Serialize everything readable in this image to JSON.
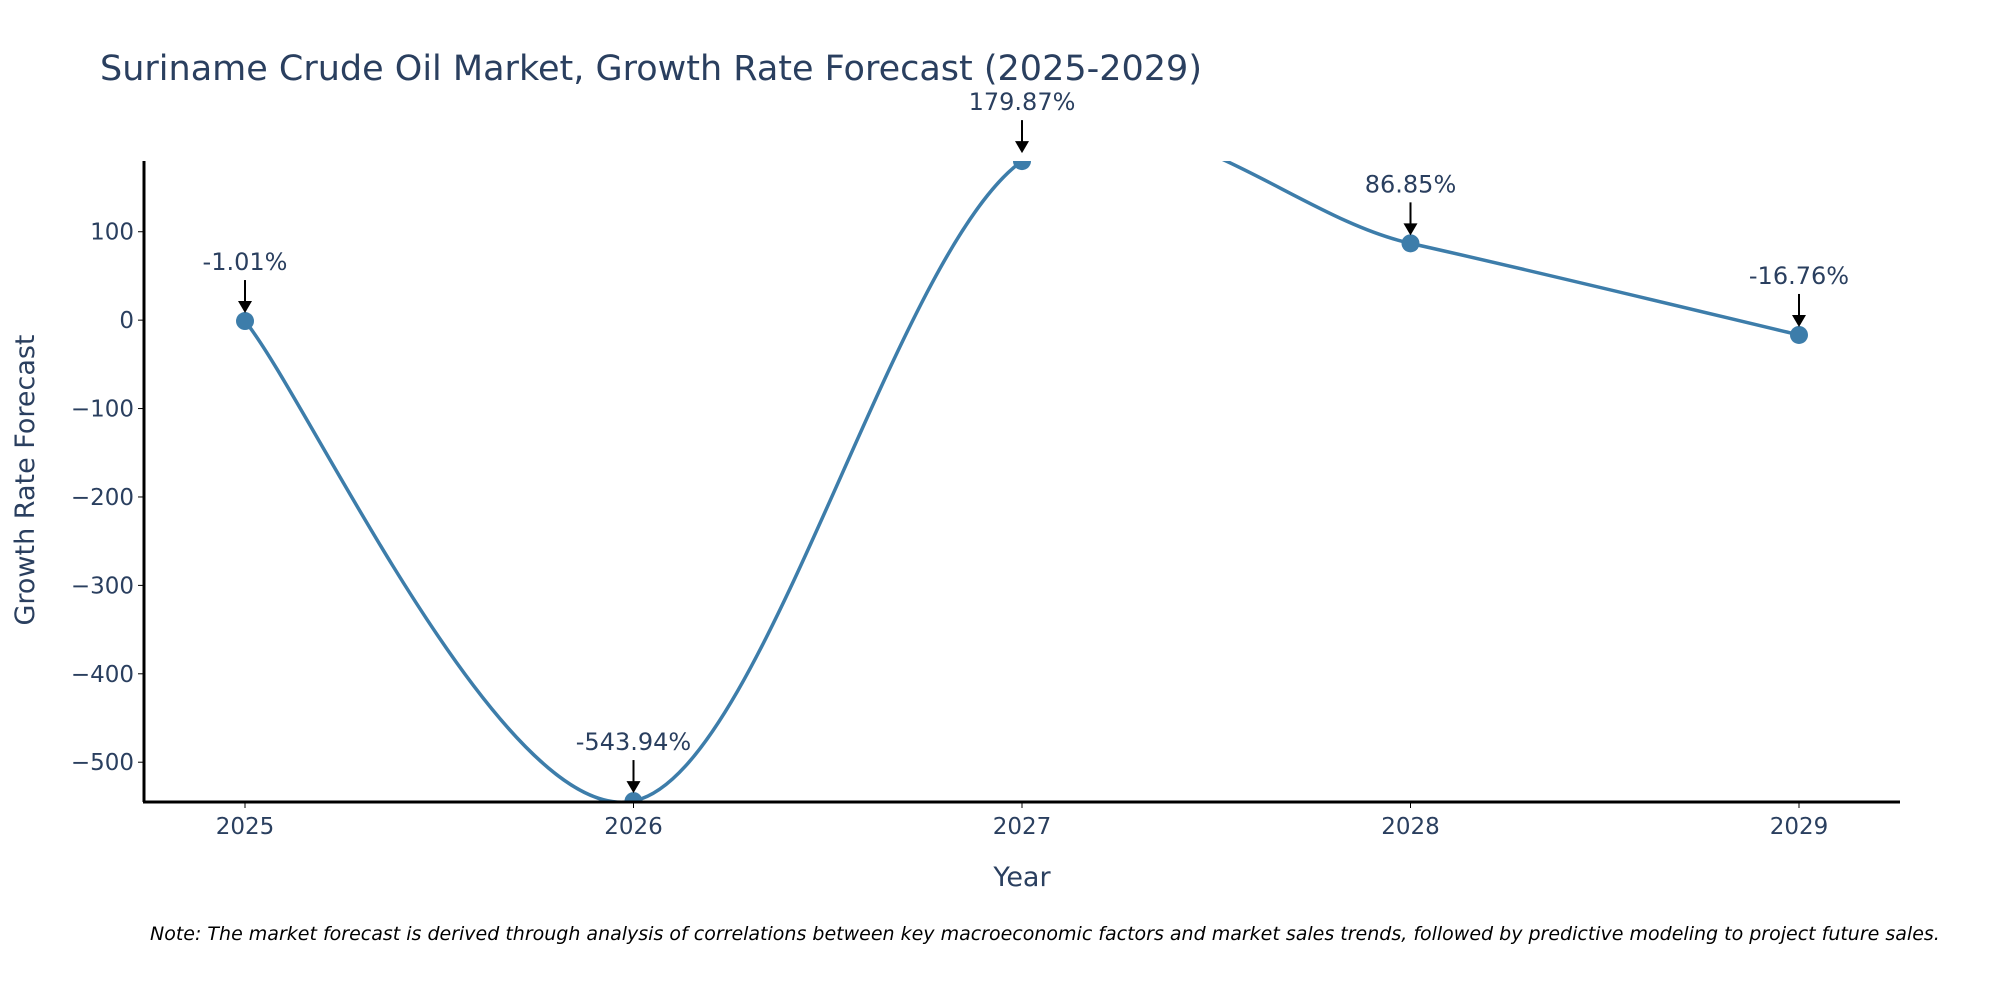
{
  "chart_data": {
    "type": "line",
    "title": "Suriname Crude Oil Market, Growth Rate Forecast (2025-2029)",
    "xlabel": "Year",
    "ylabel": "Growth Rate Forecast",
    "categories": [
      "2025",
      "2026",
      "2027",
      "2028",
      "2029"
    ],
    "x": [
      2025,
      2026,
      2027,
      2028,
      2029
    ],
    "values": [
      -1.01,
      -543.94,
      179.87,
      86.85,
      -16.76
    ],
    "data_labels": [
      "-1.01%",
      "-543.94%",
      "179.87%",
      "86.85%",
      "-16.76%"
    ],
    "ylim": [
      -545,
      180
    ],
    "xlim": [
      2024.74,
      2029.26
    ],
    "y_ticks": [
      100,
      0,
      -100,
      -200,
      -300,
      -400,
      -500
    ],
    "y_tick_labels": [
      "100",
      "0",
      "−100",
      "−200",
      "−300",
      "−400",
      "−500"
    ],
    "line_shape": "spline",
    "line_color": "#3d7daa",
    "annotation_arrow_color": "#000000",
    "grid": false,
    "legend": "none",
    "note": "Note: The market forecast is derived through analysis of correlations between key macroeconomic factors and market sales trends, followed by predictive modeling to project future sales."
  }
}
